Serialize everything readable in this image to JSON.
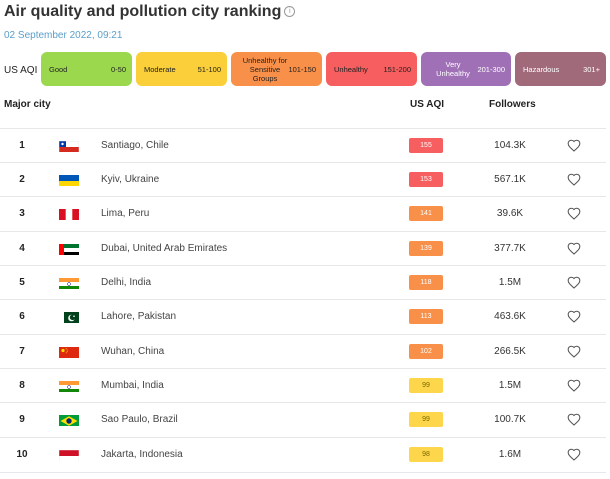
{
  "header": {
    "title": "Air quality and pollution city ranking",
    "info_icon": "info-icon",
    "date": "02 September 2022, 09:21"
  },
  "legend": {
    "label": "US AQI",
    "items": [
      {
        "name": "Good",
        "range": "0-50",
        "color": "#9cd84e"
      },
      {
        "name": "Moderate",
        "range": "51-100",
        "color": "#facf39"
      },
      {
        "name": "Unhealthy for Sensitive Groups",
        "range": "101-150",
        "color": "#f99049"
      },
      {
        "name": "Unhealthy",
        "range": "151-200",
        "color": "#f65e5f"
      },
      {
        "name": "Very Unhealthy",
        "range": "201-300",
        "color": "#a070b6"
      },
      {
        "name": "Hazardous",
        "range": "301+",
        "color": "#a06a7b"
      }
    ]
  },
  "table": {
    "columns": {
      "city": "Major city",
      "aqi": "US AQI",
      "followers": "Followers"
    },
    "rows": [
      {
        "rank": "1",
        "city": "Santiago, Chile",
        "aqi": "155",
        "followers": "104.3K",
        "color": "#f65e5f",
        "flag": "chile-flag"
      },
      {
        "rank": "2",
        "city": "Kyiv, Ukraine",
        "aqi": "153",
        "followers": "567.1K",
        "color": "#f65e5f",
        "flag": "ukraine-flag"
      },
      {
        "rank": "3",
        "city": "Lima, Peru",
        "aqi": "141",
        "followers": "39.6K",
        "color": "#f99049",
        "flag": "peru-flag"
      },
      {
        "rank": "4",
        "city": "Dubai, United Arab Emirates",
        "aqi": "139",
        "followers": "377.7K",
        "color": "#f99049",
        "flag": "uae-flag"
      },
      {
        "rank": "5",
        "city": "Delhi, India",
        "aqi": "118",
        "followers": "1.5M",
        "color": "#f99049",
        "flag": "india-flag"
      },
      {
        "rank": "6",
        "city": "Lahore, Pakistan",
        "aqi": "113",
        "followers": "463.6K",
        "color": "#f99049",
        "flag": "pakistan-flag"
      },
      {
        "rank": "7",
        "city": "Wuhan, China",
        "aqi": "102",
        "followers": "266.5K",
        "color": "#f99049",
        "flag": "china-flag"
      },
      {
        "rank": "8",
        "city": "Mumbai, India",
        "aqi": "99",
        "followers": "1.5M",
        "color": "#fdd64b",
        "flag": "india-flag"
      },
      {
        "rank": "9",
        "city": "Sao Paulo, Brazil",
        "aqi": "99",
        "followers": "100.7K",
        "color": "#fdd64b",
        "flag": "brazil-flag"
      },
      {
        "rank": "10",
        "city": "Jakarta, Indonesia",
        "aqi": "98",
        "followers": "1.6M",
        "color": "#fdd64b",
        "flag": "indonesia-flag"
      }
    ]
  }
}
